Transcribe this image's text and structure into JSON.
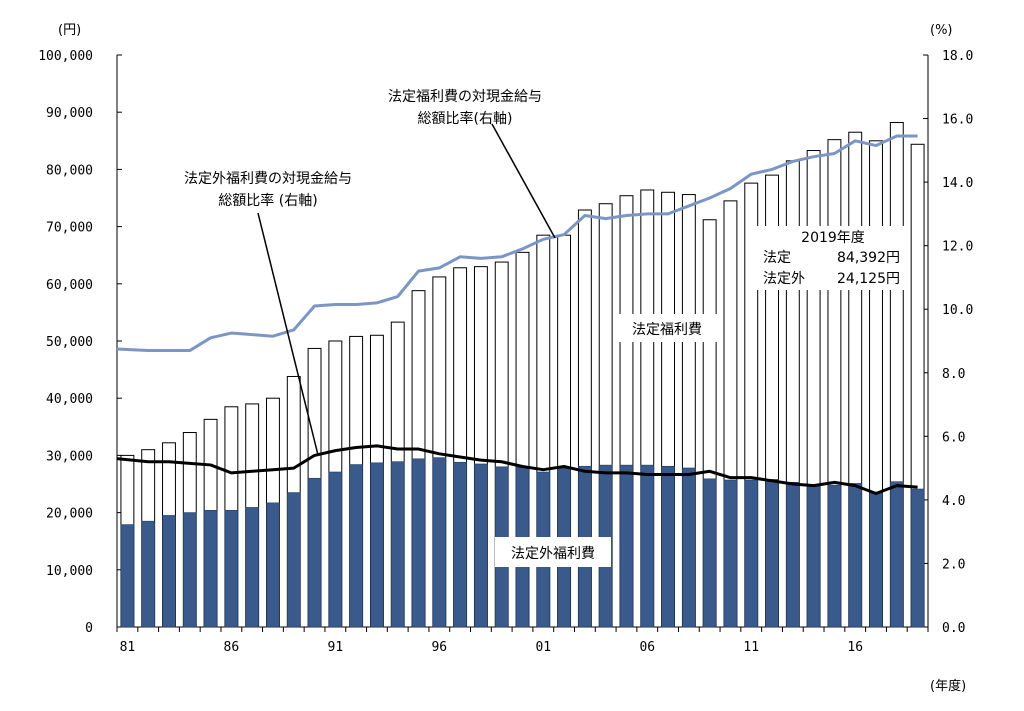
{
  "chart_data": {
    "type": "bar",
    "y_left_unit": "(円)",
    "y_right_unit": "(%)",
    "x_unit": "(年度)",
    "ylim_left": [
      0,
      100000
    ],
    "ylim_right": [
      0,
      18
    ],
    "grid": false,
    "left_ticks": [
      "0",
      "10,000",
      "20,000",
      "30,000",
      "40,000",
      "50,000",
      "60,000",
      "70,000",
      "80,000",
      "90,000",
      "100,000"
    ],
    "right_ticks": [
      "0.0",
      "2.0",
      "4.0",
      "6.0",
      "8.0",
      "10.0",
      "12.0",
      "14.0",
      "16.0",
      "18.0"
    ],
    "x_tick_labels": [
      {
        "index": 0,
        "text": "81"
      },
      {
        "index": 5,
        "text": "86"
      },
      {
        "index": 10,
        "text": "91"
      },
      {
        "index": 15,
        "text": "96"
      },
      {
        "index": 20,
        "text": "01"
      },
      {
        "index": 25,
        "text": "06"
      },
      {
        "index": 30,
        "text": "11"
      },
      {
        "index": 35,
        "text": "16"
      }
    ],
    "years": [
      1981,
      1982,
      1983,
      1984,
      1985,
      1986,
      1987,
      1988,
      1989,
      1990,
      1991,
      1992,
      1993,
      1994,
      1995,
      1996,
      1997,
      1998,
      1999,
      2000,
      2001,
      2002,
      2003,
      2004,
      2005,
      2006,
      2007,
      2008,
      2009,
      2010,
      2011,
      2012,
      2013,
      2014,
      2015,
      2016,
      2017,
      2018,
      2019
    ],
    "series": [
      {
        "name": "法定福利費",
        "kind": "bar",
        "axis": "left",
        "color": "#ffffff",
        "stroke": "#000000",
        "values": [
          30000,
          31000,
          32200,
          34000,
          36300,
          38500,
          39000,
          40000,
          43800,
          48700,
          50000,
          50800,
          51000,
          53300,
          58800,
          61200,
          62800,
          63000,
          63800,
          65500,
          68500,
          68500,
          72900,
          74000,
          75400,
          76400,
          76000,
          75600,
          71200,
          74500,
          77600,
          79000,
          81500,
          83300,
          85200,
          86500,
          85000,
          88200,
          84392
        ]
      },
      {
        "name": "法定外福利費",
        "kind": "bar",
        "axis": "left",
        "color": "#3b5a8c",
        "values": [
          17900,
          18500,
          19500,
          20000,
          20400,
          20400,
          20900,
          21700,
          23500,
          26000,
          27100,
          28400,
          28700,
          28900,
          29400,
          29600,
          28800,
          28500,
          28000,
          27900,
          27100,
          27800,
          28100,
          28300,
          28300,
          28300,
          28100,
          27800,
          25900,
          25700,
          25700,
          25800,
          25300,
          24800,
          24800,
          25100,
          23600,
          25400,
          24125
        ]
      },
      {
        "name": "法定福利費の対現金給与総額比率(右軸)",
        "kind": "line",
        "axis": "right",
        "color": "#7b96c4",
        "values": [
          8.75,
          8.7,
          8.7,
          8.7,
          9.1,
          9.25,
          9.2,
          9.15,
          9.35,
          10.1,
          10.15,
          10.15,
          10.2,
          10.4,
          11.2,
          11.3,
          11.65,
          11.6,
          11.65,
          11.9,
          12.2,
          12.35,
          12.95,
          12.85,
          12.95,
          13.0,
          13.0,
          13.25,
          13.5,
          13.8,
          14.25,
          14.4,
          14.65,
          14.8,
          14.9,
          15.3,
          15.15,
          15.45,
          15.45
        ]
      },
      {
        "name": "法定外福利費の対現金給与総額比率(右軸)",
        "kind": "line",
        "axis": "right",
        "color": "#000000",
        "values": [
          5.3,
          5.2,
          5.2,
          5.15,
          5.1,
          4.85,
          4.9,
          4.95,
          5.0,
          5.4,
          5.55,
          5.65,
          5.7,
          5.6,
          5.6,
          5.45,
          5.35,
          5.25,
          5.2,
          5.05,
          4.95,
          5.05,
          4.9,
          4.85,
          4.85,
          4.8,
          4.8,
          4.8,
          4.9,
          4.7,
          4.7,
          4.6,
          4.5,
          4.45,
          4.55,
          4.45,
          4.2,
          4.45,
          4.4
        ]
      }
    ],
    "annotations": {
      "legal_line_label": [
        "法定福利費の対現金給与",
        "総額比率(右軸)"
      ],
      "nonlegal_line_label": [
        "法定外福利費の対現金給与",
        "総額比率 (右軸)"
      ],
      "legal_bar_label": "法定福利費",
      "nonlegal_bar_label": "法定外福利費",
      "box_title": "2019年度",
      "box_rows": [
        {
          "label": "法定",
          "value": "84,392円"
        },
        {
          "label": "法定外",
          "value": "24,125円"
        }
      ]
    }
  }
}
